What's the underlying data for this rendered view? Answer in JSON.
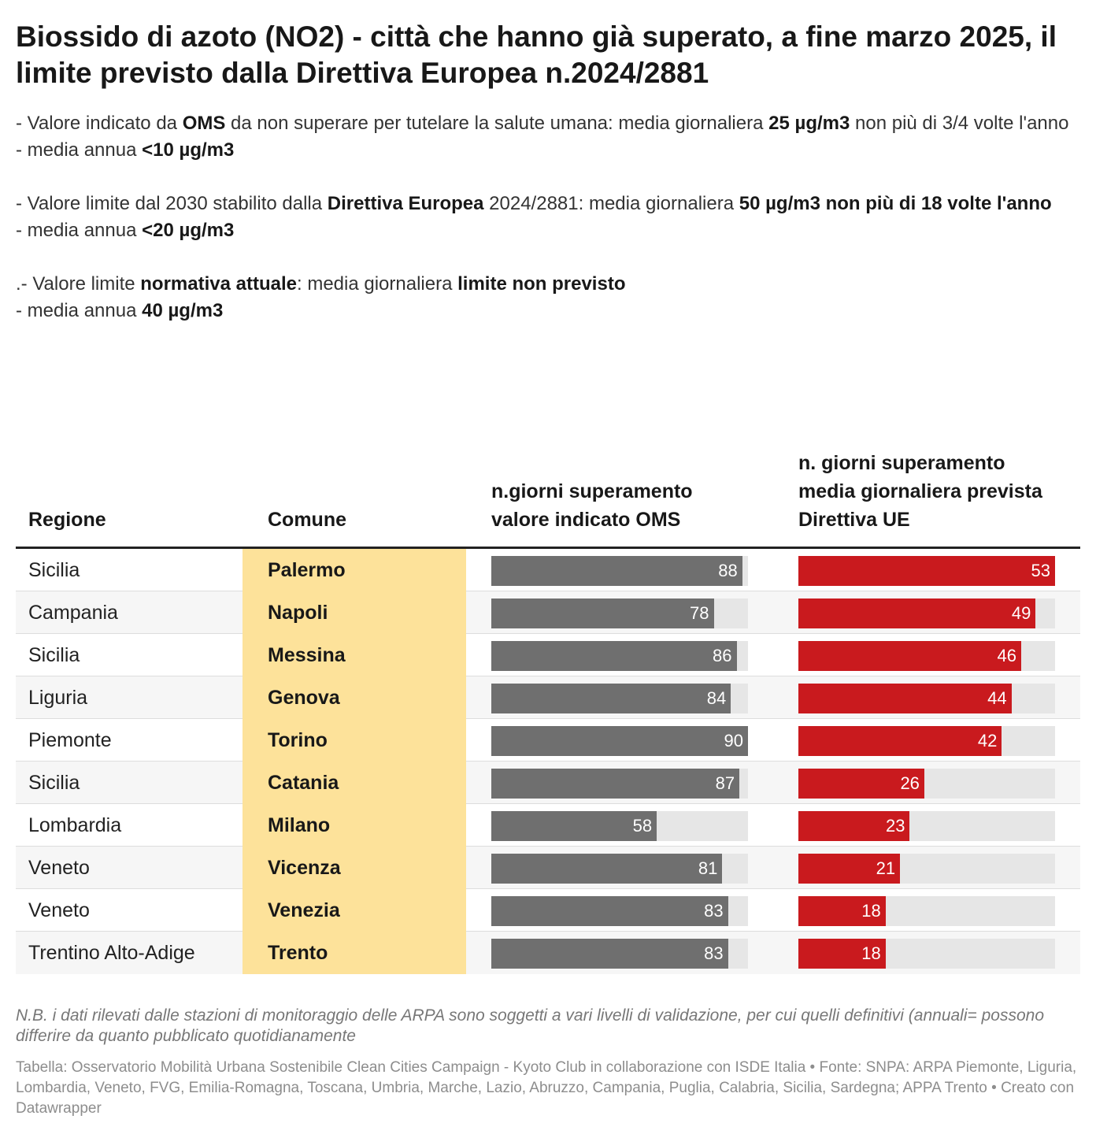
{
  "title": "Biossido di azoto (NO2) - città che hanno già superato, a fine marzo 2025, il limite previsto dalla Direttiva Europea n.2024/2881",
  "description": [
    [
      {
        "t": "- Valore indicato da "
      },
      {
        "t": "OMS",
        "b": true
      },
      {
        "t": " da non superare per tutelare la salute umana: media giornaliera "
      },
      {
        "t": "25 µg/m3",
        "b": true
      },
      {
        "t": " non più di 3/4 volte l'anno"
      }
    ],
    [
      {
        "t": "- media annua "
      },
      {
        "t": "<10 µg/m3",
        "b": true
      }
    ],
    [],
    [
      {
        "t": "- Valore limite dal 2030 stabilito dalla "
      },
      {
        "t": "Direttiva Europea",
        "b": true
      },
      {
        "t": " 2024/2881: media giornaliera "
      },
      {
        "t": "50 µg/m3 non più di 18 volte l'anno",
        "b": true
      }
    ],
    [
      {
        "t": "- media annua "
      },
      {
        "t": "<20 µg/m3",
        "b": true
      }
    ],
    [],
    [
      {
        "t": ".- Valore limite "
      },
      {
        "t": "normativa attuale",
        "b": true
      },
      {
        "t": ": media giornaliera "
      },
      {
        "t": "limite non previsto",
        "b": true
      }
    ],
    [
      {
        "t": "- media annua "
      },
      {
        "t": "40 µg/m3",
        "b": true
      }
    ]
  ],
  "table": {
    "headers": {
      "regione": "Regione",
      "comune": "Comune",
      "oms": "n.giorni superamento valore indicato OMS",
      "ue": "n. giorni superamento media giornaliera prevista Direttiva UE"
    }
  },
  "chart_data": {
    "type": "table",
    "columns": [
      "Regione",
      "Comune",
      "n.giorni superamento valore indicato OMS",
      "n. giorni superamento media giornaliera prevista Direttiva UE"
    ],
    "oms_max": 90,
    "ue_max": 53,
    "colors": {
      "oms_bar": "#6f6f6f",
      "ue_bar": "#c91a1e",
      "track": "#e6e6e6",
      "comune_highlight": "#fde29a"
    },
    "rows": [
      {
        "regione": "Sicilia",
        "comune": "Palermo",
        "oms": 88,
        "ue": 53
      },
      {
        "regione": "Campania",
        "comune": "Napoli",
        "oms": 78,
        "ue": 49
      },
      {
        "regione": "Sicilia",
        "comune": "Messina",
        "oms": 86,
        "ue": 46
      },
      {
        "regione": "Liguria",
        "comune": "Genova",
        "oms": 84,
        "ue": 44
      },
      {
        "regione": "Piemonte",
        "comune": "Torino",
        "oms": 90,
        "ue": 42
      },
      {
        "regione": "Sicilia",
        "comune": "Catania",
        "oms": 87,
        "ue": 26
      },
      {
        "regione": "Lombardia",
        "comune": "Milano",
        "oms": 58,
        "ue": 23
      },
      {
        "regione": "Veneto",
        "comune": "Vicenza",
        "oms": 81,
        "ue": 21
      },
      {
        "regione": "Veneto",
        "comune": "Venezia",
        "oms": 83,
        "ue": 18
      },
      {
        "regione": "Trentino Alto-Adige",
        "comune": "Trento",
        "oms": 83,
        "ue": 18
      }
    ]
  },
  "footer": {
    "note": "N.B. i dati rilevati dalle stazioni di monitoraggio delle ARPA sono soggetti a vari livelli di validazione, per cui quelli definitivi (annuali= possono differire da quanto pubblicato quotidianamente",
    "source": "Tabella: Osservatorio Mobilità Urbana Sostenibile Clean Cities Campaign - Kyoto Club in collaborazione con ISDE Italia • Fonte: SNPA: ARPA Piemonte, Liguria, Lombardia, Veneto, FVG, Emilia-Romagna, Toscana, Umbria, Marche, Lazio, Abruzzo, Campania, Puglia, Calabria, Sicilia, Sardegna; APPA Trento • Creato con Datawrapper"
  }
}
